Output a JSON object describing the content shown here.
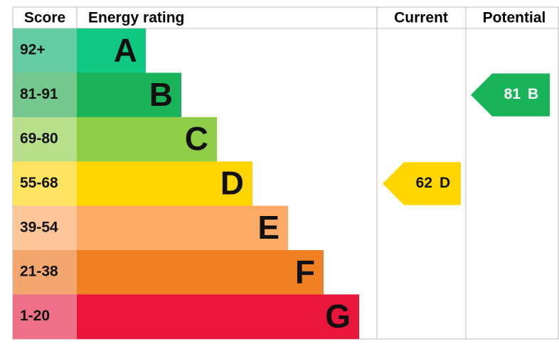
{
  "header": {
    "score": "Score",
    "rating": "Energy rating",
    "current": "Current",
    "potential": "Potential"
  },
  "bands": [
    {
      "score": "92+",
      "letter": "A",
      "color": "#0fc983",
      "score_color": "#66cca3"
    },
    {
      "score": "81-91",
      "letter": "B",
      "color": "#19b459",
      "score_color": "#74c88e"
    },
    {
      "score": "69-80",
      "letter": "C",
      "color": "#8dce46",
      "score_color": "#b6de8b"
    },
    {
      "score": "55-68",
      "letter": "D",
      "color": "#ffd500",
      "score_color": "#fde35f"
    },
    {
      "score": "39-54",
      "letter": "E",
      "color": "#fcaa65",
      "score_color": "#fcc699"
    },
    {
      "score": "21-38",
      "letter": "F",
      "color": "#ef8023",
      "score_color": "#f3a76f"
    },
    {
      "score": "1-20",
      "letter": "G",
      "color": "#e9153b",
      "score_color": "#ef7189"
    }
  ],
  "current": {
    "score": "62",
    "letter": "D"
  },
  "potential": {
    "score": "81",
    "letter": "B"
  }
}
